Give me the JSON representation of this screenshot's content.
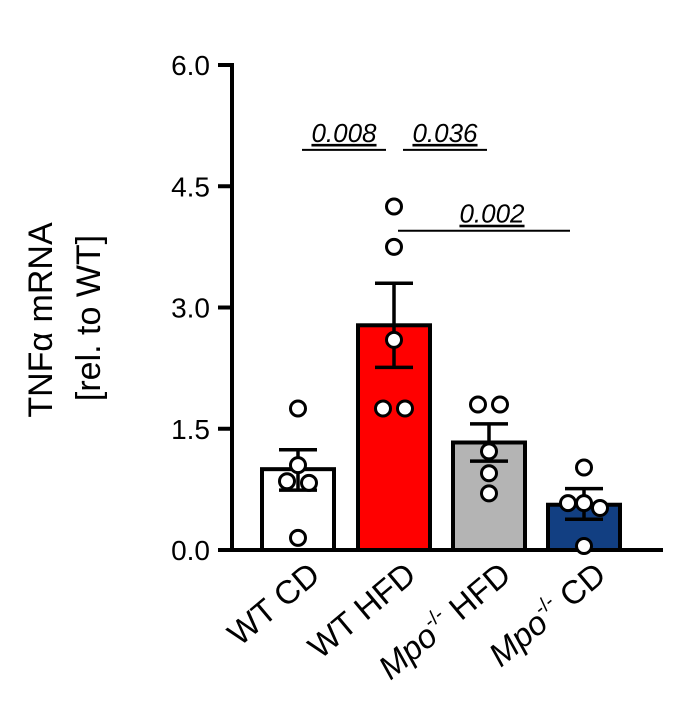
{
  "chart_data": {
    "type": "bar",
    "ylabel_line1": "TNFα mRNA",
    "ylabel_line2": "[rel. to WT]",
    "ylim": [
      0,
      6
    ],
    "yticks": [
      {
        "value": 0,
        "label": "0.0"
      },
      {
        "value": 1.5,
        "label": "1.5"
      },
      {
        "value": 3,
        "label": "3.0"
      },
      {
        "value": 4.5,
        "label": "4.5"
      },
      {
        "value": 6,
        "label": "6.0"
      }
    ],
    "categories": [
      {
        "label": "WT CD",
        "italic": "",
        "sup": "",
        "rest": "",
        "value": 1.0,
        "sem_low": 0.74,
        "sem_high": 1.24,
        "color": "#ffffff",
        "points": [
          1.75,
          1.05,
          0.85,
          0.83,
          0.15
        ]
      },
      {
        "label": "WT HFD",
        "italic": "",
        "sup": "",
        "rest": "",
        "value": 2.78,
        "sem_low": 2.26,
        "sem_high": 3.3,
        "color": "#ff0000",
        "points": [
          4.25,
          3.75,
          2.6,
          1.75,
          1.75
        ]
      },
      {
        "label": "",
        "italic": "Mpo",
        "sup": "-/-",
        "rest": " HFD",
        "value": 1.33,
        "sem_low": 1.1,
        "sem_high": 1.56,
        "color": "#b4b4b4",
        "points": [
          1.8,
          1.8,
          1.22,
          0.95,
          0.7
        ]
      },
      {
        "label": "",
        "italic": "Mpo",
        "sup": "-/-",
        "rest": " CD",
        "value": 0.56,
        "sem_low": 0.38,
        "sem_high": 0.76,
        "color": "#123f82",
        "points": [
          1.02,
          0.58,
          0.58,
          0.52,
          0.05
        ]
      }
    ],
    "comparisons": [
      {
        "from": 0,
        "to": 1,
        "label": "0.008",
        "y": 4.95
      },
      {
        "from": 1,
        "to": 2,
        "label": "0.036",
        "y": 4.95
      },
      {
        "from": 1,
        "to": 3,
        "label": "0.002",
        "y": 3.95
      }
    ]
  }
}
